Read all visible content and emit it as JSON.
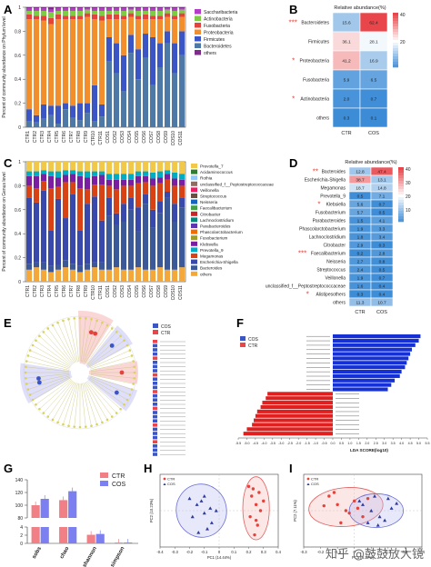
{
  "panel_labels": {
    "A": "A",
    "B": "B",
    "C": "C",
    "D": "D",
    "E": "E",
    "F": "F",
    "G": "G",
    "H": "H",
    "I": "I"
  },
  "watermark": "知乎 @鼓鼓放大镜",
  "colors": {
    "Saccharibacteria": "#b33dc6",
    "Actinobacteria": "#7ecb46",
    "Fusobacteria": "#e4433b",
    "Proteobacteria": "#f28e2b",
    "Firmicutes": "#3b55c4",
    "Bacteroidetes": "#4e79a7",
    "others": "#7f2b8e",
    "heat_high": "#e8464a",
    "heat_low": "#3b8bd6",
    "ctr": "#e8464a",
    "cos": "#3b55c4"
  },
  "chart_data": [
    {
      "id": "A",
      "type": "bar",
      "stacked": true,
      "ylabel": "Percent of community abundance on Phylum level",
      "ylim": [
        0,
        1
      ],
      "yticks": [
        "0",
        "0.2",
        "0.4",
        "0.6",
        "0.8",
        "1"
      ],
      "categories": [
        "CTR1",
        "CTR2",
        "CTR3",
        "CTR4",
        "CTR5",
        "CTR6",
        "CTR7",
        "CTR8",
        "CTR9",
        "CTR10",
        "CTR11",
        "COS1",
        "COS2",
        "COS3",
        "COS4",
        "COS5",
        "COS6",
        "COS7",
        "COS8",
        "COS9",
        "COS10",
        "COS11"
      ],
      "series": [
        {
          "name": "Bacteroidetes",
          "values": [
            0.05,
            0.04,
            0.07,
            0.1,
            0.03,
            0.15,
            0.08,
            0.06,
            0.12,
            0.05,
            0.09,
            0.55,
            0.45,
            0.3,
            0.62,
            0.4,
            0.58,
            0.35,
            0.5,
            0.7,
            0.45,
            0.6
          ]
        },
        {
          "name": "Firmicutes",
          "values": [
            0.1,
            0.06,
            0.12,
            0.08,
            0.15,
            0.05,
            0.1,
            0.14,
            0.08,
            0.3,
            0.1,
            0.2,
            0.25,
            0.3,
            0.15,
            0.25,
            0.2,
            0.4,
            0.2,
            0.1,
            0.25,
            0.2
          ]
        },
        {
          "name": "Proteobacteria",
          "values": [
            0.75,
            0.8,
            0.7,
            0.68,
            0.72,
            0.7,
            0.72,
            0.7,
            0.72,
            0.55,
            0.7,
            0.15,
            0.2,
            0.3,
            0.15,
            0.25,
            0.12,
            0.15,
            0.2,
            0.12,
            0.2,
            0.12
          ]
        },
        {
          "name": "Fusobacteria",
          "values": [
            0.04,
            0.03,
            0.04,
            0.05,
            0.04,
            0.03,
            0.03,
            0.03,
            0.03,
            0.04,
            0.04,
            0.04,
            0.04,
            0.03,
            0.03,
            0.03,
            0.04,
            0.03,
            0.03,
            0.03,
            0.03,
            0.03
          ]
        },
        {
          "name": "Actinobacteria",
          "values": [
            0.03,
            0.04,
            0.04,
            0.05,
            0.03,
            0.04,
            0.04,
            0.04,
            0.03,
            0.03,
            0.04,
            0.03,
            0.03,
            0.04,
            0.03,
            0.04,
            0.03,
            0.04,
            0.04,
            0.03,
            0.04,
            0.03
          ]
        },
        {
          "name": "Saccharibacteria",
          "values": [
            0.02,
            0.02,
            0.02,
            0.02,
            0.02,
            0.02,
            0.02,
            0.02,
            0.01,
            0.02,
            0.02,
            0.02,
            0.02,
            0.02,
            0.01,
            0.02,
            0.02,
            0.02,
            0.02,
            0.01,
            0.02,
            0.01
          ]
        },
        {
          "name": "others",
          "values": [
            0.01,
            0.01,
            0.01,
            0.02,
            0.01,
            0.01,
            0.01,
            0.01,
            0.01,
            0.01,
            0.01,
            0.01,
            0.01,
            0.01,
            0.01,
            0.01,
            0.01,
            0.01,
            0.01,
            0.01,
            0.01,
            0.01
          ]
        }
      ],
      "legend_order": [
        "Saccharibacteria",
        "Actinobacteria",
        "Fusobacteria",
        "Proteobacteria",
        "Firmicutes",
        "Bacteroidetes",
        "others"
      ]
    },
    {
      "id": "B",
      "type": "heatmap",
      "title": "Relative abundance(%)",
      "columns": [
        "CTR",
        "COS"
      ],
      "rows": [
        "Bacteroidetes",
        "Firmicutes",
        "Proteobacteria",
        "Fusobacteria",
        "Actinobacteria",
        "others"
      ],
      "stars": [
        "***",
        "",
        "*",
        "",
        "*",
        ""
      ],
      "values": [
        [
          15.6,
          62.4
        ],
        [
          36.1,
          28.1
        ],
        [
          41.2,
          16.9
        ],
        [
          5.9,
          6.5
        ],
        [
          2.0,
          0.7
        ],
        [
          0.3,
          0.1
        ]
      ],
      "labels": [
        [
          "15.6",
          "62.4"
        ],
        [
          "36.1",
          "28.1"
        ],
        [
          "41.2",
          "16.9"
        ],
        [
          "5.9",
          "6.5"
        ],
        [
          "2.0",
          "0.7"
        ],
        [
          "0.3",
          "0.1"
        ]
      ],
      "colorbar_ticks": [
        "40",
        "20"
      ]
    },
    {
      "id": "C",
      "type": "bar",
      "stacked": true,
      "ylabel": "Percent of community abundance on Genus level",
      "ylim": [
        0,
        1
      ],
      "yticks": [
        "0",
        "0.2",
        "0.4",
        "0.6",
        "0.8",
        "1"
      ],
      "categories": [
        "CTR1",
        "CTR2",
        "CTR3",
        "CTR4",
        "CTR5",
        "CTR6",
        "CTR7",
        "CTR8",
        "CTR9",
        "CTR10",
        "CTR11",
        "COS1",
        "COS2",
        "COS3",
        "COS4",
        "COS5",
        "COS6",
        "COS7",
        "COS8",
        "COS9",
        "COS10",
        "COS11"
      ],
      "series": [
        {
          "name": "others",
          "values": [
            0.1,
            0.12,
            0.1,
            0.08,
            0.1,
            0.12,
            0.1,
            0.08,
            0.1,
            0.12,
            0.1,
            0.1,
            0.12,
            0.1,
            0.1,
            0.12,
            0.1,
            0.1,
            0.12,
            0.1,
            0.1,
            0.12
          ]
        },
        {
          "name": "Bacteroides",
          "values": [
            0.05,
            0.04,
            0.06,
            0.05,
            0.04,
            0.06,
            0.05,
            0.05,
            0.05,
            0.04,
            0.06,
            0.45,
            0.35,
            0.4,
            0.5,
            0.3,
            0.55,
            0.35,
            0.45,
            0.6,
            0.4,
            0.5
          ]
        },
        {
          "name": "Escherichia-Shigella",
          "values": [
            0.55,
            0.5,
            0.6,
            0.3,
            0.55,
            0.35,
            0.58,
            0.3,
            0.5,
            0.55,
            0.35,
            0.15,
            0.1,
            0.15,
            0.1,
            0.2,
            0.08,
            0.15,
            0.1,
            0.05,
            0.15,
            0.08
          ]
        },
        {
          "name": "Megamonas",
          "values": [
            0.1,
            0.12,
            0.08,
            0.35,
            0.1,
            0.3,
            0.1,
            0.35,
            0.12,
            0.1,
            0.3,
            0.1,
            0.2,
            0.15,
            0.1,
            0.2,
            0.1,
            0.2,
            0.15,
            0.1,
            0.15,
            0.1
          ]
        },
        {
          "name": "Klebsiella",
          "values": [
            0.08,
            0.1,
            0.06,
            0.1,
            0.08,
            0.06,
            0.07,
            0.1,
            0.1,
            0.07,
            0.08,
            0.05,
            0.08,
            0.05,
            0.05,
            0.06,
            0.05,
            0.06,
            0.05,
            0.05,
            0.06,
            0.05
          ]
        },
        {
          "name": "Prevotella_9",
          "values": [
            0.04,
            0.04,
            0.03,
            0.04,
            0.05,
            0.04,
            0.03,
            0.04,
            0.05,
            0.04,
            0.03,
            0.05,
            0.05,
            0.05,
            0.05,
            0.04,
            0.04,
            0.05,
            0.05,
            0.03,
            0.05,
            0.05
          ]
        },
        {
          "name": "Prevotella_7",
          "values": [
            0.08,
            0.08,
            0.07,
            0.08,
            0.08,
            0.07,
            0.07,
            0.08,
            0.08,
            0.08,
            0.08,
            0.1,
            0.1,
            0.1,
            0.1,
            0.08,
            0.08,
            0.09,
            0.08,
            0.07,
            0.09,
            0.1
          ]
        }
      ],
      "legend_order": [
        "Prevotella_7",
        "Acidaminococcus",
        "Rothia",
        "unclassified_f__Peptostreptococcaceae",
        "Veillonella",
        "Streptococcus",
        "Neisseria",
        "Faecalibacterium",
        "Citrobacter",
        "Lachnoclostridium",
        "Parabacteroides",
        "Phascolarctobacterium",
        "Fusobacterium",
        "Klebsiella",
        "Prevotella_9",
        "Megamonas",
        "Escherichia-Shigella",
        "Bacteroides",
        "others"
      ],
      "legend_colors": [
        "#f2c84b",
        "#2e7d32",
        "#90caf9",
        "#8d6e63",
        "#e91e63",
        "#6d4c41",
        "#1565c0",
        "#43a047",
        "#c62828",
        "#00897b",
        "#5e35b1",
        "#ef6c00",
        "#9e9d24",
        "#7b1fa2",
        "#00acc1",
        "#d84315",
        "#3949ab",
        "#3b5998",
        "#f4a83a"
      ]
    },
    {
      "id": "D",
      "type": "heatmap",
      "title": "Relative abundance(%)",
      "columns": [
        "CTR",
        "COS"
      ],
      "rows": [
        "Bacteroides",
        "Escherichia-Shigella",
        "Megamonas",
        "Prevotella_9",
        "Klebsiella",
        "Fusobacterium",
        "Parabacteroides",
        "Phascolarctobacterium",
        "Lachnoclostridium",
        "Citrobacter",
        "Faecalibacterium",
        "Neisseria",
        "Streptococcus",
        "Veillonella",
        "unclassified_f__Peptostreptococcaceae",
        "Alistipesothers",
        "others"
      ],
      "stars": [
        "**",
        "",
        "",
        "",
        "*",
        "",
        "",
        "",
        "",
        "",
        "***",
        "",
        "",
        "",
        "",
        "*",
        ""
      ],
      "values": [
        [
          12.8,
          47.4
        ],
        [
          38.7,
          13.1
        ],
        [
          18.7,
          14.8
        ],
        [
          0.5,
          7.1
        ],
        [
          5.6,
          0.7
        ],
        [
          5.7,
          0.5
        ],
        [
          1.5,
          4.1
        ],
        [
          1.9,
          3.3
        ],
        [
          1.8,
          3.4
        ],
        [
          2.9,
          0.3
        ],
        [
          0.2,
          2.8
        ],
        [
          2.7,
          0.8
        ],
        [
          2.4,
          0.5
        ],
        [
          1.9,
          0.7
        ],
        [
          1.6,
          0.4
        ],
        [
          0.3,
          0.4
        ],
        [
          11.3,
          10.7
        ]
      ],
      "labels": [
        [
          "12.8",
          "47.4"
        ],
        [
          "38.7",
          "13.1"
        ],
        [
          "18.7",
          "14.8"
        ],
        [
          "0.5",
          "7.1"
        ],
        [
          "5.6",
          "0.7"
        ],
        [
          "5.7",
          "0.5"
        ],
        [
          "1.5",
          "4.1"
        ],
        [
          "1.9",
          "3.3"
        ],
        [
          "1.8",
          "3.4"
        ],
        [
          "2.9",
          "0.3"
        ],
        [
          "0.2",
          "2.8"
        ],
        [
          "2.7",
          "0.8"
        ],
        [
          "2.4",
          "0.5"
        ],
        [
          "1.9",
          "0.7"
        ],
        [
          "1.6",
          "0.4"
        ],
        [
          "0.3",
          "0.4"
        ],
        [
          "11.3",
          "10.7"
        ]
      ],
      "colorbar_ticks": [
        "40",
        "30",
        "20",
        "10"
      ]
    },
    {
      "id": "E",
      "type": "other",
      "legend": [
        "COS",
        "CTR"
      ]
    },
    {
      "id": "F",
      "type": "bar",
      "orientation": "horizontal",
      "legend": [
        "COS",
        "CTR"
      ],
      "xlabel": "LDA SCORE(log10)",
      "xticks": [
        "-5.5",
        "-5.0",
        "-4.5",
        "-4.0",
        "-3.5",
        "-3.0",
        "-2.5",
        "-2.0",
        "-1.5",
        "-1.0",
        "-0.5",
        "0.0",
        "0.5",
        "1.0",
        "1.5",
        "2.0",
        "2.5",
        "3.0",
        "3.5",
        "4.0",
        "4.5",
        "5.0",
        "5.5"
      ],
      "xlim": [
        -5.5,
        5.5
      ],
      "values": [
        5.1,
        5.0,
        4.8,
        4.6,
        4.5,
        4.4,
        4.3,
        4.2,
        4.0,
        3.9,
        3.6,
        3.4,
        3.2,
        -3.8,
        -3.9,
        -4.1,
        -4.2,
        -4.4,
        -4.5,
        -4.6,
        -4.7,
        -5.0,
        -5.2
      ]
    },
    {
      "id": "G",
      "type": "bar",
      "categories": [
        "sobs",
        "chao",
        "shannon",
        "simpson"
      ],
      "series": [
        {
          "name": "CTR",
          "values": [
            100,
            108,
            2.1,
            0.2
          ]
        },
        {
          "name": "COS",
          "values": [
            110,
            122,
            2.3,
            0.2
          ]
        }
      ],
      "yticks_top": [
        "80",
        "100",
        "120",
        "140"
      ],
      "yticks_bottom": [
        "0",
        "2",
        "4"
      ]
    },
    {
      "id": "H",
      "type": "scatter",
      "xticks": [
        "-0.4",
        "-0.3",
        "-0.2",
        "-0.1",
        "0",
        "0.1",
        "0.2",
        "0.3",
        "0.4"
      ],
      "xlabel": "PC1 (14.44%)",
      "ylabel": "PC2 (10.23%)",
      "legend": [
        "CTR",
        "COS"
      ],
      "series": [
        {
          "name": "CTR",
          "x": [
            0.2,
            0.22,
            0.25,
            0.28,
            0.21,
            0.26,
            0.3,
            0.24,
            0.27,
            0.23,
            0.25
          ],
          "y": [
            0.2,
            0.12,
            0.05,
            0.0,
            -0.05,
            -0.12,
            0.08,
            -0.2,
            0.15,
            0.18,
            -0.08
          ]
        },
        {
          "name": "COS",
          "x": [
            -0.2,
            -0.15,
            -0.1,
            -0.05,
            -0.12,
            -0.08,
            -0.18,
            -0.02,
            -0.14,
            -0.06,
            -0.1
          ],
          "y": [
            0.1,
            0.05,
            -0.02,
            -0.1,
            0.08,
            -0.15,
            -0.05,
            0.0,
            -0.18,
            0.02,
            0.12
          ]
        }
      ]
    },
    {
      "id": "I",
      "type": "scatter",
      "xticks": [
        "-0.3",
        "-0.2",
        "-0.1",
        "0",
        "0.1",
        "0.2",
        "0.3",
        "0.4"
      ],
      "xlabel": "PC1 (8.77%)",
      "ylabel": "PC2 (7.11%)",
      "legend": [
        "CTR",
        "COS"
      ],
      "series": [
        {
          "name": "CTR",
          "x": [
            -0.15,
            -0.1,
            -0.05,
            0.0,
            0.05,
            -0.08,
            -0.12,
            0.02,
            -0.03,
            0.08,
            -0.18
          ],
          "y": [
            0.12,
            0.05,
            0.0,
            0.08,
            -0.05,
            -0.1,
            0.15,
            0.02,
            -0.02,
            0.1,
            0.04
          ]
        },
        {
          "name": "COS",
          "x": [
            0.05,
            0.1,
            0.15,
            0.2,
            0.12,
            0.18,
            0.08,
            0.22,
            0.25,
            0.14,
            0.03
          ],
          "y": [
            0.05,
            0.0,
            -0.05,
            0.1,
            0.12,
            -0.08,
            -0.1,
            0.02,
            0.06,
            -0.12,
            0.08
          ]
        }
      ]
    }
  ]
}
